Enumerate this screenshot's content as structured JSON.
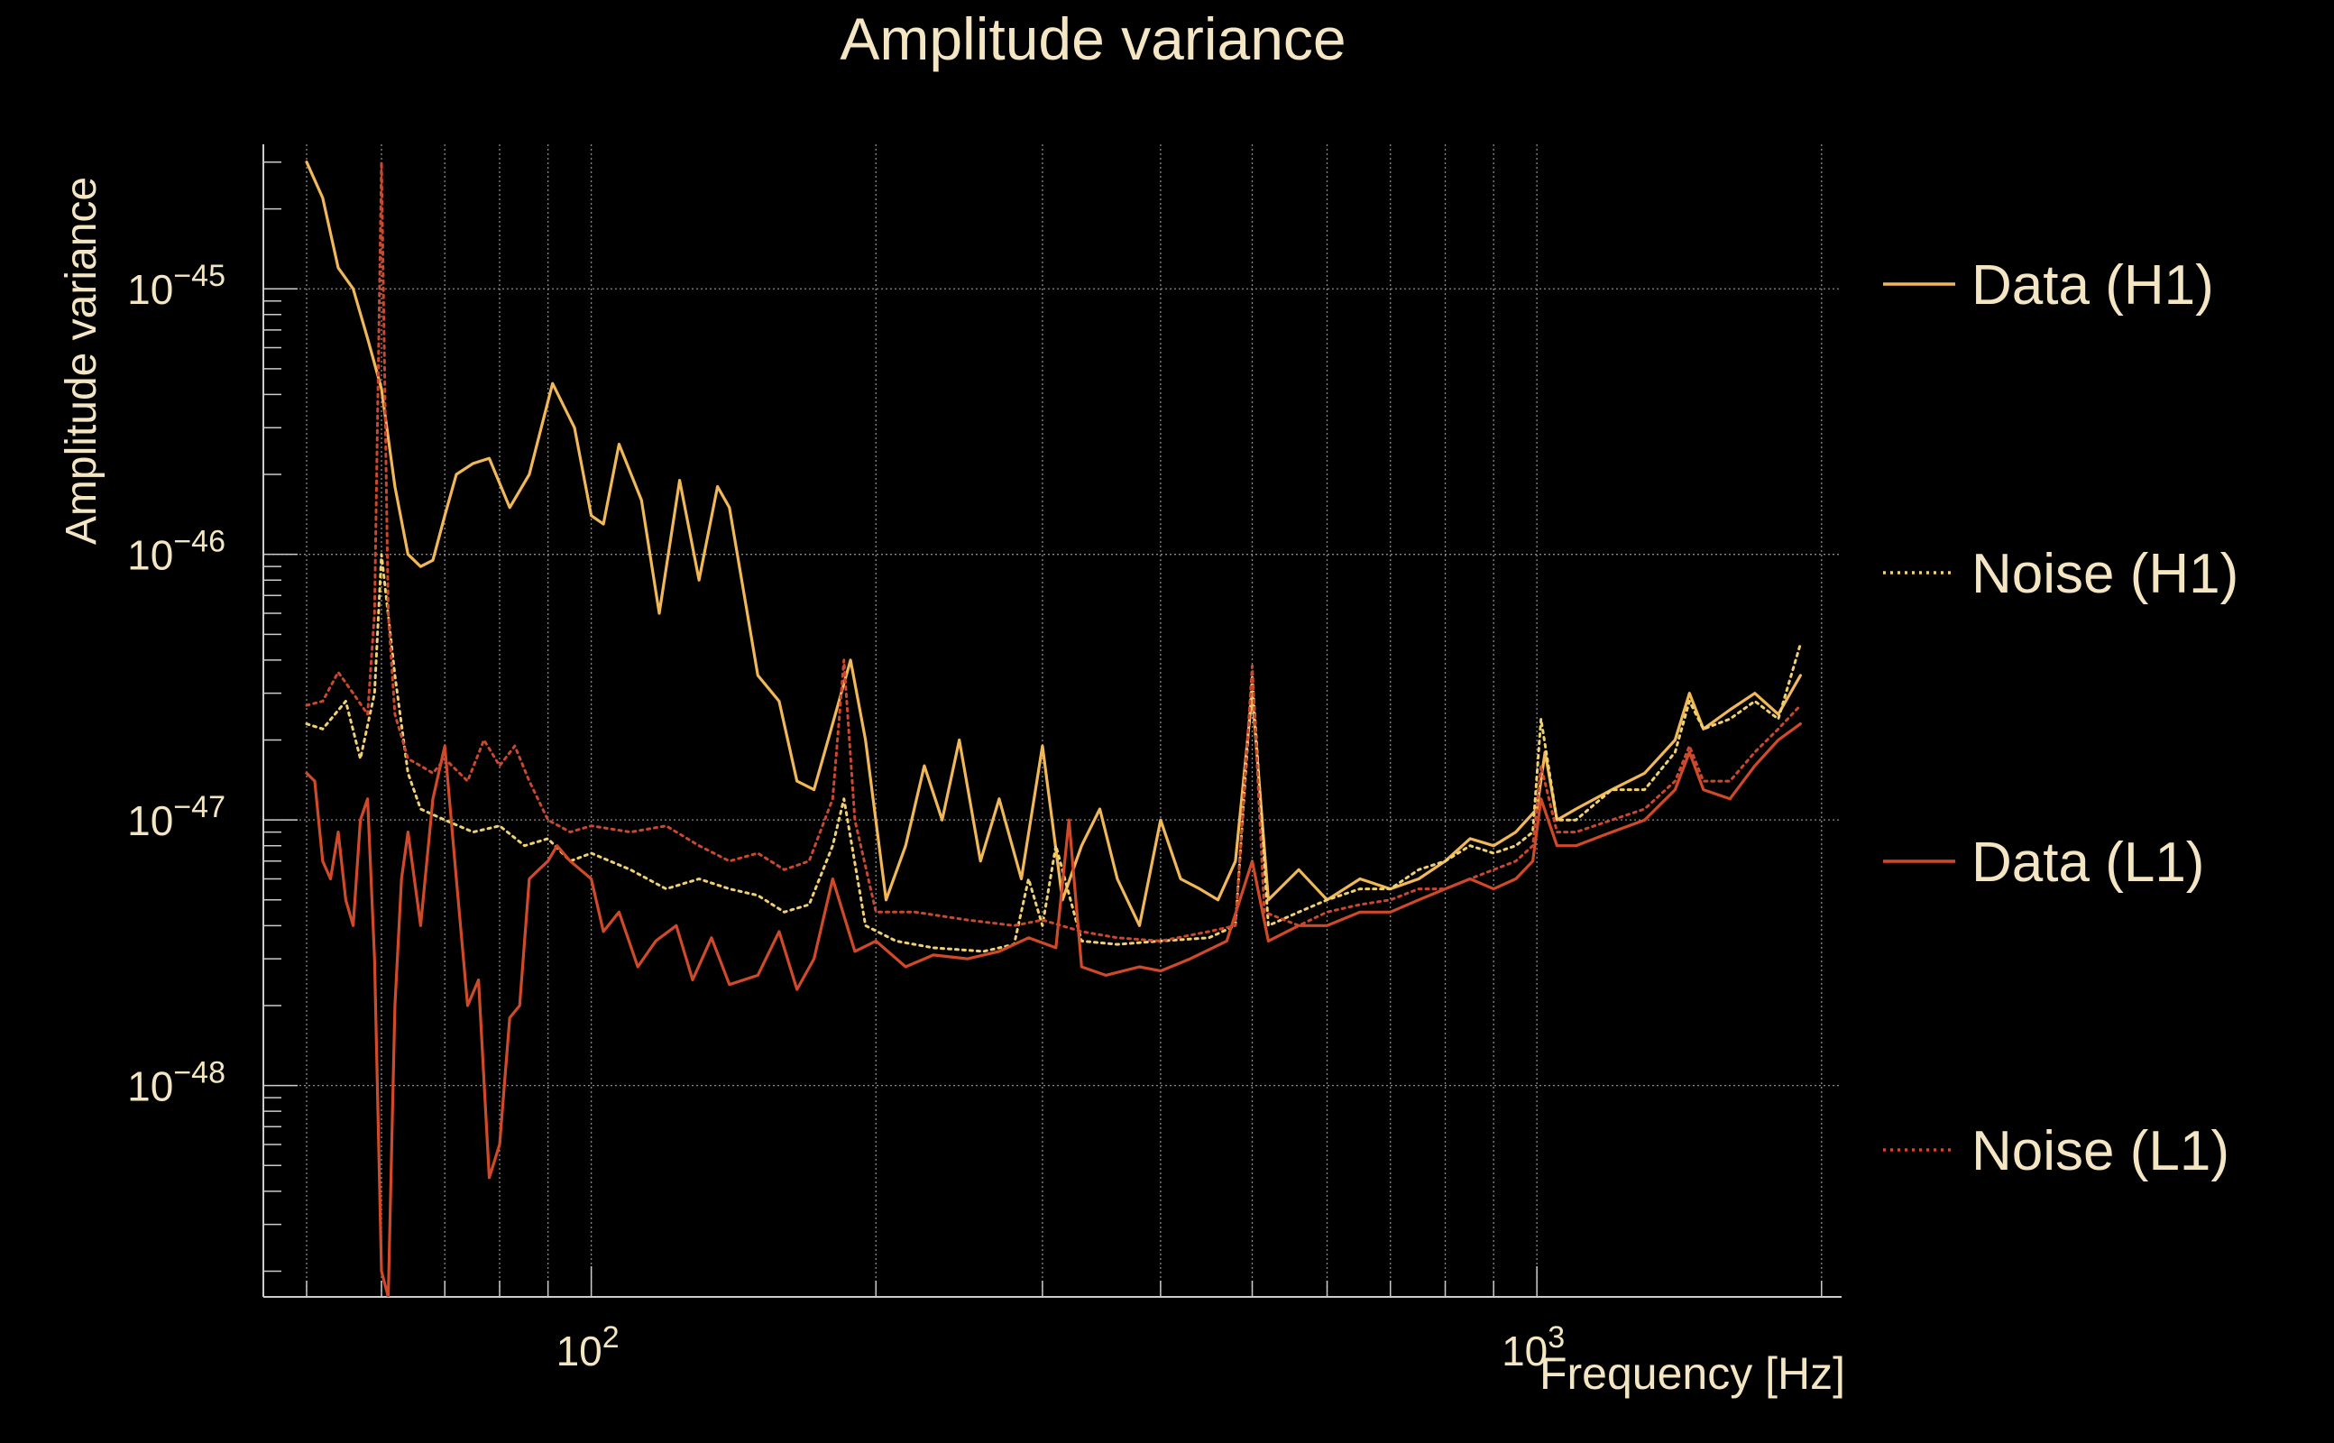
{
  "chart_data": {
    "type": "line",
    "title": "Amplitude variance",
    "xlabel": "Frequency [Hz]",
    "ylabel": "Amplitude variance",
    "xscale": "log",
    "yscale": "log",
    "xlim": [
      45,
      2100
    ],
    "ylim": [
      1.6e-49,
      3.5e-45
    ],
    "grid": true,
    "legend_position": "right",
    "x_ticks": [
      {
        "base": "10",
        "exp": "2",
        "value": 100
      },
      {
        "base": "10",
        "exp": "3",
        "value": 1000
      }
    ],
    "y_ticks": [
      {
        "base": "10",
        "exp": "−45",
        "value": 1e-45
      },
      {
        "base": "10",
        "exp": "−46",
        "value": 1e-46
      },
      {
        "base": "10",
        "exp": "−47",
        "value": 1e-47
      },
      {
        "base": "10",
        "exp": "−48",
        "value": 1e-48
      }
    ],
    "series": [
      {
        "name": "Data (H1)",
        "color": "#f0b858",
        "style": "solid",
        "points": [
          [
            50,
            3e-45
          ],
          [
            52,
            2.2e-45
          ],
          [
            54,
            1.2e-45
          ],
          [
            56,
            1e-45
          ],
          [
            58,
            6.5e-46
          ],
          [
            60,
            4.2e-46
          ],
          [
            62,
            1.8e-46
          ],
          [
            64,
            1e-46
          ],
          [
            66,
            9e-47
          ],
          [
            68,
            9.5e-47
          ],
          [
            70,
            1.4e-46
          ],
          [
            72,
            2e-46
          ],
          [
            75,
            2.2e-46
          ],
          [
            78,
            2.3e-46
          ],
          [
            82,
            1.5e-46
          ],
          [
            86,
            2e-46
          ],
          [
            91,
            4.4e-46
          ],
          [
            96,
            3e-46
          ],
          [
            100,
            1.4e-46
          ],
          [
            103,
            1.3e-46
          ],
          [
            107,
            2.6e-46
          ],
          [
            113,
            1.6e-46
          ],
          [
            118,
            6e-47
          ],
          [
            124,
            1.9e-46
          ],
          [
            130,
            8e-47
          ],
          [
            136,
            1.8e-46
          ],
          [
            140,
            1.5e-46
          ],
          [
            150,
            3.5e-47
          ],
          [
            158,
            2.8e-47
          ],
          [
            165,
            1.4e-47
          ],
          [
            172,
            1.3e-47
          ],
          [
            178,
            2e-47
          ],
          [
            188,
            4e-47
          ],
          [
            195,
            2e-47
          ],
          [
            205,
            5e-48
          ],
          [
            215,
            8e-48
          ],
          [
            225,
            1.6e-47
          ],
          [
            235,
            1e-47
          ],
          [
            245,
            2e-47
          ],
          [
            258,
            7e-48
          ],
          [
            270,
            1.2e-47
          ],
          [
            285,
            6e-48
          ],
          [
            300,
            1.9e-47
          ],
          [
            315,
            5e-48
          ],
          [
            330,
            8e-48
          ],
          [
            345,
            1.1e-47
          ],
          [
            360,
            6e-48
          ],
          [
            380,
            4e-48
          ],
          [
            400,
            1e-47
          ],
          [
            420,
            6e-48
          ],
          [
            440,
            5.5e-48
          ],
          [
            460,
            5e-48
          ],
          [
            480,
            7e-48
          ],
          [
            500,
            3e-47
          ],
          [
            520,
            5e-48
          ],
          [
            560,
            6.5e-48
          ],
          [
            600,
            5e-48
          ],
          [
            650,
            6e-48
          ],
          [
            700,
            5.5e-48
          ],
          [
            750,
            6e-48
          ],
          [
            800,
            7e-48
          ],
          [
            850,
            8.5e-48
          ],
          [
            900,
            8e-48
          ],
          [
            950,
            9e-48
          ],
          [
            1000,
            1.1e-47
          ],
          [
            1020,
            1.8e-47
          ],
          [
            1050,
            1e-47
          ],
          [
            1100,
            1.1e-47
          ],
          [
            1200,
            1.3e-47
          ],
          [
            1300,
            1.5e-47
          ],
          [
            1400,
            2e-47
          ],
          [
            1450,
            3e-47
          ],
          [
            1500,
            2.2e-47
          ],
          [
            1600,
            2.6e-47
          ],
          [
            1700,
            3e-47
          ],
          [
            1800,
            2.5e-47
          ],
          [
            1900,
            3.5e-47
          ]
        ]
      },
      {
        "name": "Noise (H1)",
        "color": "#f0d070",
        "style": "dotted",
        "points": [
          [
            50,
            2.3e-47
          ],
          [
            52,
            2.2e-47
          ],
          [
            55,
            2.8e-47
          ],
          [
            57,
            1.7e-47
          ],
          [
            59,
            3e-47
          ],
          [
            60,
            1e-46
          ],
          [
            62,
            3.5e-47
          ],
          [
            64,
            1.5e-47
          ],
          [
            66,
            1.1e-47
          ],
          [
            70,
            1e-47
          ],
          [
            75,
            9e-48
          ],
          [
            80,
            9.5e-48
          ],
          [
            85,
            8e-48
          ],
          [
            90,
            8.5e-48
          ],
          [
            95,
            7e-48
          ],
          [
            100,
            7.5e-48
          ],
          [
            110,
            6.5e-48
          ],
          [
            120,
            5.5e-48
          ],
          [
            130,
            6e-48
          ],
          [
            140,
            5.5e-48
          ],
          [
            150,
            5.2e-48
          ],
          [
            160,
            4.5e-48
          ],
          [
            170,
            4.8e-48
          ],
          [
            180,
            8e-48
          ],
          [
            185,
            1.2e-47
          ],
          [
            195,
            4e-48
          ],
          [
            210,
            3.5e-48
          ],
          [
            230,
            3.3e-48
          ],
          [
            260,
            3.2e-48
          ],
          [
            280,
            3.4e-48
          ],
          [
            290,
            6e-48
          ],
          [
            300,
            4e-48
          ],
          [
            310,
            8e-48
          ],
          [
            330,
            3.5e-48
          ],
          [
            360,
            3.4e-48
          ],
          [
            400,
            3.5e-48
          ],
          [
            450,
            3.6e-48
          ],
          [
            480,
            4e-48
          ],
          [
            500,
            3.5e-47
          ],
          [
            520,
            4e-48
          ],
          [
            560,
            4.5e-48
          ],
          [
            600,
            5e-48
          ],
          [
            650,
            5.5e-48
          ],
          [
            700,
            5.5e-48
          ],
          [
            750,
            6.5e-48
          ],
          [
            800,
            7e-48
          ],
          [
            850,
            8e-48
          ],
          [
            900,
            7.5e-48
          ],
          [
            950,
            8e-48
          ],
          [
            990,
            9e-48
          ],
          [
            1010,
            2.4e-47
          ],
          [
            1050,
            1e-47
          ],
          [
            1100,
            1e-47
          ],
          [
            1200,
            1.3e-47
          ],
          [
            1300,
            1.3e-47
          ],
          [
            1400,
            1.8e-47
          ],
          [
            1450,
            2.8e-47
          ],
          [
            1500,
            2.2e-47
          ],
          [
            1600,
            2.4e-47
          ],
          [
            1700,
            2.8e-47
          ],
          [
            1800,
            2.4e-47
          ],
          [
            1900,
            4.6e-47
          ]
        ]
      },
      {
        "name": "Data (L1)",
        "color": "#d04a2a",
        "style": "solid",
        "points": [
          [
            50,
            1.5e-47
          ],
          [
            51,
            1.4e-47
          ],
          [
            52,
            7e-48
          ],
          [
            53,
            6e-48
          ],
          [
            54,
            9e-48
          ],
          [
            55,
            5e-48
          ],
          [
            56,
            4e-48
          ],
          [
            57,
            1e-47
          ],
          [
            58,
            1.2e-47
          ],
          [
            59,
            3e-48
          ],
          [
            60,
            2e-49
          ],
          [
            61,
            1.6e-49
          ],
          [
            62,
            2e-48
          ],
          [
            63,
            6e-48
          ],
          [
            64,
            9e-48
          ],
          [
            66,
            4e-48
          ],
          [
            68,
            1.2e-47
          ],
          [
            70,
            1.9e-47
          ],
          [
            72,
            6e-48
          ],
          [
            74,
            2e-48
          ],
          [
            76,
            2.5e-48
          ],
          [
            78,
            4.5e-49
          ],
          [
            80,
            6e-49
          ],
          [
            82,
            1.8e-48
          ],
          [
            84,
            2e-48
          ],
          [
            86,
            6e-48
          ],
          [
            88,
            6.5e-48
          ],
          [
            90,
            7e-48
          ],
          [
            92,
            8e-48
          ],
          [
            95,
            7e-48
          ],
          [
            100,
            6e-48
          ],
          [
            103,
            3.8e-48
          ],
          [
            107,
            4.5e-48
          ],
          [
            112,
            2.8e-48
          ],
          [
            117,
            3.5e-48
          ],
          [
            123,
            4e-48
          ],
          [
            128,
            2.5e-48
          ],
          [
            134,
            3.6e-48
          ],
          [
            140,
            2.4e-48
          ],
          [
            150,
            2.6e-48
          ],
          [
            158,
            3.8e-48
          ],
          [
            165,
            2.3e-48
          ],
          [
            172,
            3e-48
          ],
          [
            180,
            6e-48
          ],
          [
            190,
            3.2e-48
          ],
          [
            200,
            3.5e-48
          ],
          [
            215,
            2.8e-48
          ],
          [
            230,
            3.1e-48
          ],
          [
            250,
            3e-48
          ],
          [
            270,
            3.2e-48
          ],
          [
            290,
            3.6e-48
          ],
          [
            310,
            3.3e-48
          ],
          [
            320,
            1e-47
          ],
          [
            330,
            2.8e-48
          ],
          [
            350,
            2.6e-48
          ],
          [
            380,
            2.8e-48
          ],
          [
            400,
            2.7e-48
          ],
          [
            430,
            3e-48
          ],
          [
            470,
            3.5e-48
          ],
          [
            500,
            7e-48
          ],
          [
            520,
            3.5e-48
          ],
          [
            560,
            4e-48
          ],
          [
            600,
            4e-48
          ],
          [
            650,
            4.5e-48
          ],
          [
            700,
            4.5e-48
          ],
          [
            750,
            5e-48
          ],
          [
            800,
            5.5e-48
          ],
          [
            850,
            6e-48
          ],
          [
            900,
            5.5e-48
          ],
          [
            950,
            6e-48
          ],
          [
            990,
            7e-48
          ],
          [
            1010,
            1.2e-47
          ],
          [
            1050,
            8e-48
          ],
          [
            1100,
            8e-48
          ],
          [
            1200,
            9e-48
          ],
          [
            1300,
            1e-47
          ],
          [
            1400,
            1.3e-47
          ],
          [
            1450,
            1.8e-47
          ],
          [
            1500,
            1.3e-47
          ],
          [
            1600,
            1.2e-47
          ],
          [
            1700,
            1.6e-47
          ],
          [
            1800,
            2e-47
          ],
          [
            1900,
            2.3e-47
          ]
        ]
      },
      {
        "name": "Noise (L1)",
        "color": "#c84830",
        "style": "dotted",
        "points": [
          [
            50,
            2.7e-47
          ],
          [
            52,
            2.8e-47
          ],
          [
            54,
            3.6e-47
          ],
          [
            56,
            3e-47
          ],
          [
            58,
            2.5e-47
          ],
          [
            59,
            6e-47
          ],
          [
            60,
            3e-45
          ],
          [
            61,
            6e-47
          ],
          [
            62,
            2.5e-47
          ],
          [
            64,
            1.7e-47
          ],
          [
            66,
            1.6e-47
          ],
          [
            68,
            1.5e-47
          ],
          [
            70,
            1.7e-47
          ],
          [
            74,
            1.4e-47
          ],
          [
            77,
            2e-47
          ],
          [
            80,
            1.6e-47
          ],
          [
            83,
            1.9e-47
          ],
          [
            86,
            1.4e-47
          ],
          [
            90,
            1e-47
          ],
          [
            95,
            9e-48
          ],
          [
            100,
            9.5e-48
          ],
          [
            110,
            9e-48
          ],
          [
            120,
            9.5e-48
          ],
          [
            130,
            8e-48
          ],
          [
            140,
            7e-48
          ],
          [
            150,
            7.5e-48
          ],
          [
            160,
            6.5e-48
          ],
          [
            170,
            7e-48
          ],
          [
            180,
            1.2e-47
          ],
          [
            185,
            4e-47
          ],
          [
            190,
            1e-47
          ],
          [
            200,
            4.5e-48
          ],
          [
            220,
            4.5e-48
          ],
          [
            250,
            4.2e-48
          ],
          [
            280,
            4e-48
          ],
          [
            300,
            4.2e-48
          ],
          [
            330,
            3.8e-48
          ],
          [
            360,
            3.6e-48
          ],
          [
            400,
            3.5e-48
          ],
          [
            450,
            3.8e-48
          ],
          [
            480,
            4e-48
          ],
          [
            500,
            3.8e-47
          ],
          [
            515,
            4.5e-48
          ],
          [
            560,
            4e-48
          ],
          [
            600,
            4.5e-48
          ],
          [
            650,
            4.8e-48
          ],
          [
            700,
            5e-48
          ],
          [
            750,
            5.5e-48
          ],
          [
            800,
            5.5e-48
          ],
          [
            850,
            6e-48
          ],
          [
            900,
            6.5e-48
          ],
          [
            950,
            7e-48
          ],
          [
            990,
            8e-48
          ],
          [
            1010,
            1.6e-47
          ],
          [
            1050,
            9e-48
          ],
          [
            1100,
            9e-48
          ],
          [
            1200,
            1e-47
          ],
          [
            1300,
            1.1e-47
          ],
          [
            1400,
            1.4e-47
          ],
          [
            1450,
            1.9e-47
          ],
          [
            1500,
            1.4e-47
          ],
          [
            1600,
            1.4e-47
          ],
          [
            1700,
            1.8e-47
          ],
          [
            1800,
            2.2e-47
          ],
          [
            1900,
            2.7e-47
          ]
        ]
      }
    ]
  }
}
